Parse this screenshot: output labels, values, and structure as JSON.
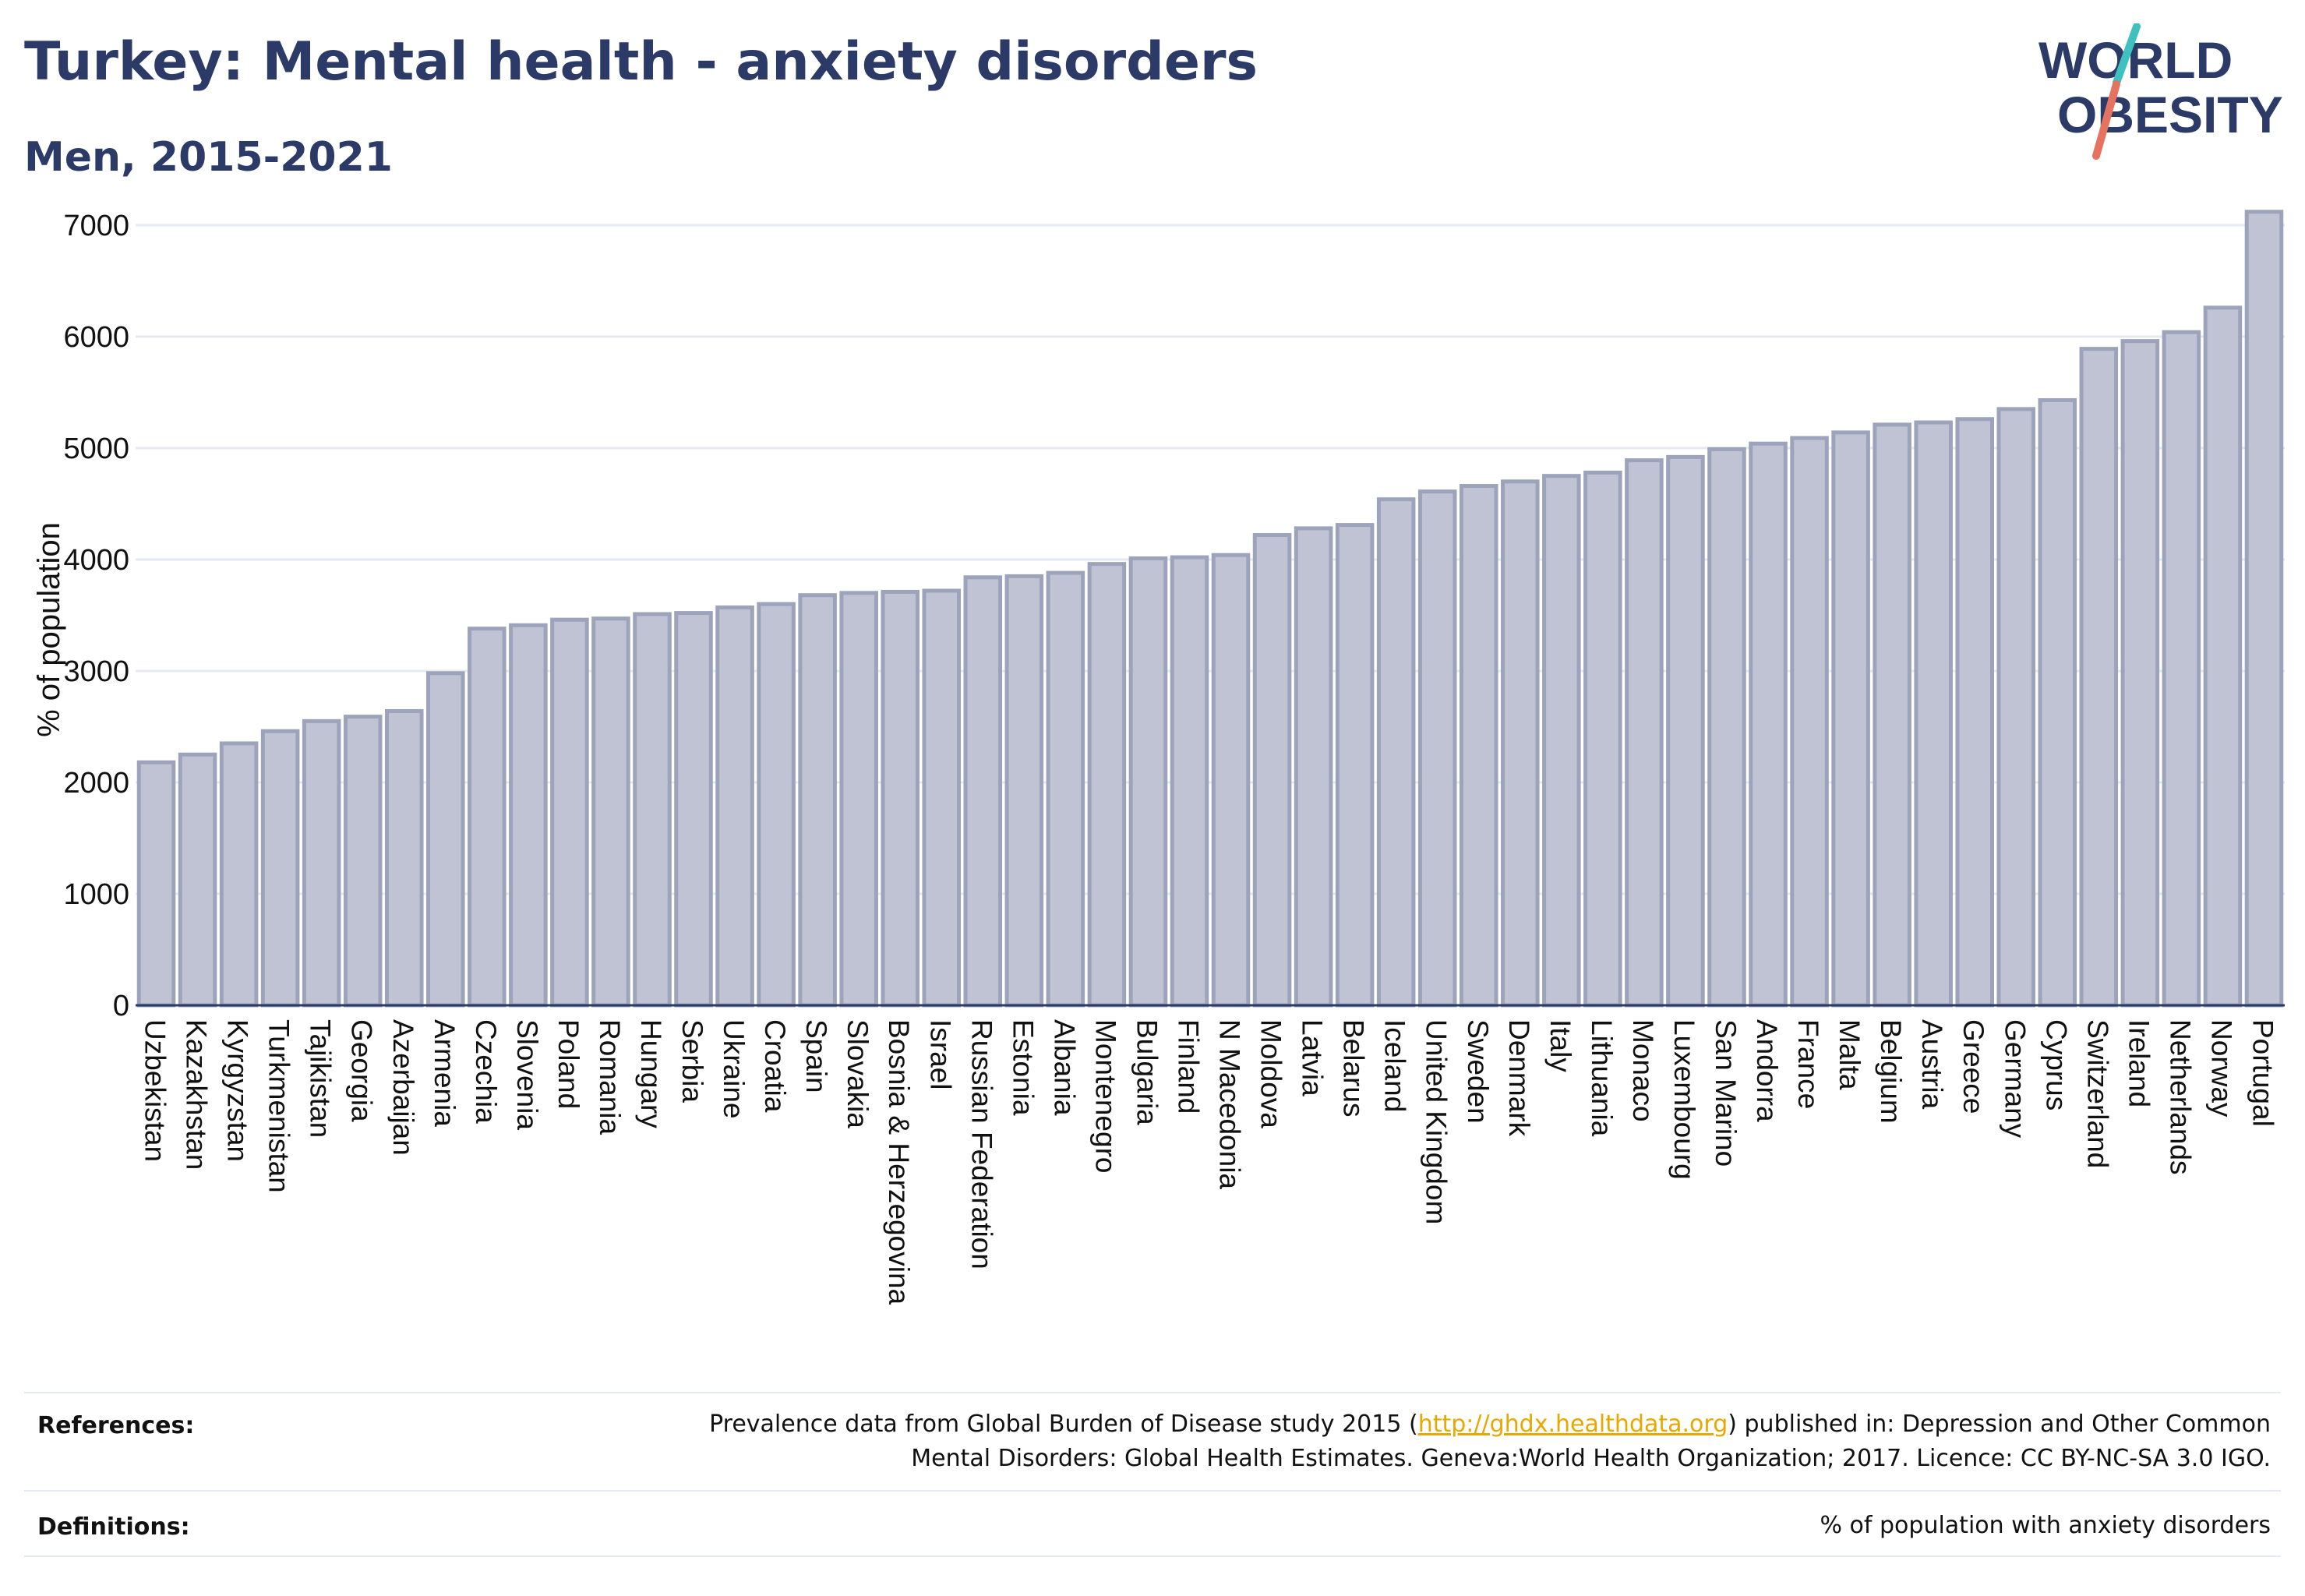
{
  "header": {
    "title": "Turkey: Mental health - anxiety disorders",
    "subtitle": "Men, 2015-2021"
  },
  "logo": {
    "line1": "WORLD",
    "line2": "OBESITY"
  },
  "colors": {
    "bar_fill": "#bfc3d3",
    "bar_stroke": "#9da3bb",
    "title": "#2b3a67",
    "grid": "#e6e9f2",
    "link": "#e8a800",
    "logo_teal": "#3fc1c0",
    "logo_coral": "#e5735f"
  },
  "chart_data": {
    "type": "bar",
    "title": "Turkey: Mental health - anxiety disorders",
    "subtitle": "Men, 2015-2021",
    "xlabel": "",
    "ylabel": "% of population",
    "ylim": [
      0,
      7300
    ],
    "yticks": [
      0,
      1000,
      2000,
      3000,
      4000,
      5000,
      6000,
      7000
    ],
    "grid": true,
    "categories": [
      "Uzbekistan",
      "Kazakhstan",
      "Kyrgyzstan",
      "Turkmenistan",
      "Tajikistan",
      "Georgia",
      "Azerbaijan",
      "Armenia",
      "Czechia",
      "Slovenia",
      "Poland",
      "Romania",
      "Hungary",
      "Serbia",
      "Ukraine",
      "Croatia",
      "Spain",
      "Slovakia",
      "Bosnia & Herzegovina",
      "Israel",
      "Russian Federation",
      "Estonia",
      "Albania",
      "Montenegro",
      "Bulgaria",
      "Finland",
      "N Macedonia",
      "Moldova",
      "Latvia",
      "Belarus",
      "Iceland",
      "United Kingdom",
      "Sweden",
      "Denmark",
      "Italy",
      "Lithuania",
      "Monaco",
      "Luxembourg",
      "San Marino",
      "Andorra",
      "France",
      "Malta",
      "Belgium",
      "Austria",
      "Greece",
      "Germany",
      "Cyprus",
      "Switzerland",
      "Ireland",
      "Netherlands",
      "Norway",
      "Portugal"
    ],
    "values": [
      2180,
      2250,
      2350,
      2460,
      2550,
      2590,
      2640,
      2980,
      3380,
      3410,
      3460,
      3470,
      3510,
      3520,
      3570,
      3600,
      3680,
      3700,
      3710,
      3720,
      3840,
      3850,
      3880,
      3960,
      4010,
      4020,
      4040,
      4220,
      4280,
      4310,
      4540,
      4610,
      4660,
      4700,
      4750,
      4780,
      4890,
      4920,
      4990,
      5040,
      5090,
      5140,
      5210,
      5230,
      5260,
      5350,
      5430,
      5890,
      5960,
      6040,
      6260,
      7120
    ]
  },
  "footer": {
    "references_label": "References:",
    "references_line1_pre": "Prevalence data from Global Burden of Disease study 2015 (",
    "references_link": "http://ghdx.healthdata.org",
    "references_line1_post": ") published in: Depression and Other Common",
    "references_line2": "Mental Disorders: Global Health Estimates. Geneva:World Health Organization; 2017. Licence: CC BY-NC-SA 3.0 IGO.",
    "definitions_label": "Definitions:",
    "definitions_text": "% of population with anxiety disorders"
  }
}
